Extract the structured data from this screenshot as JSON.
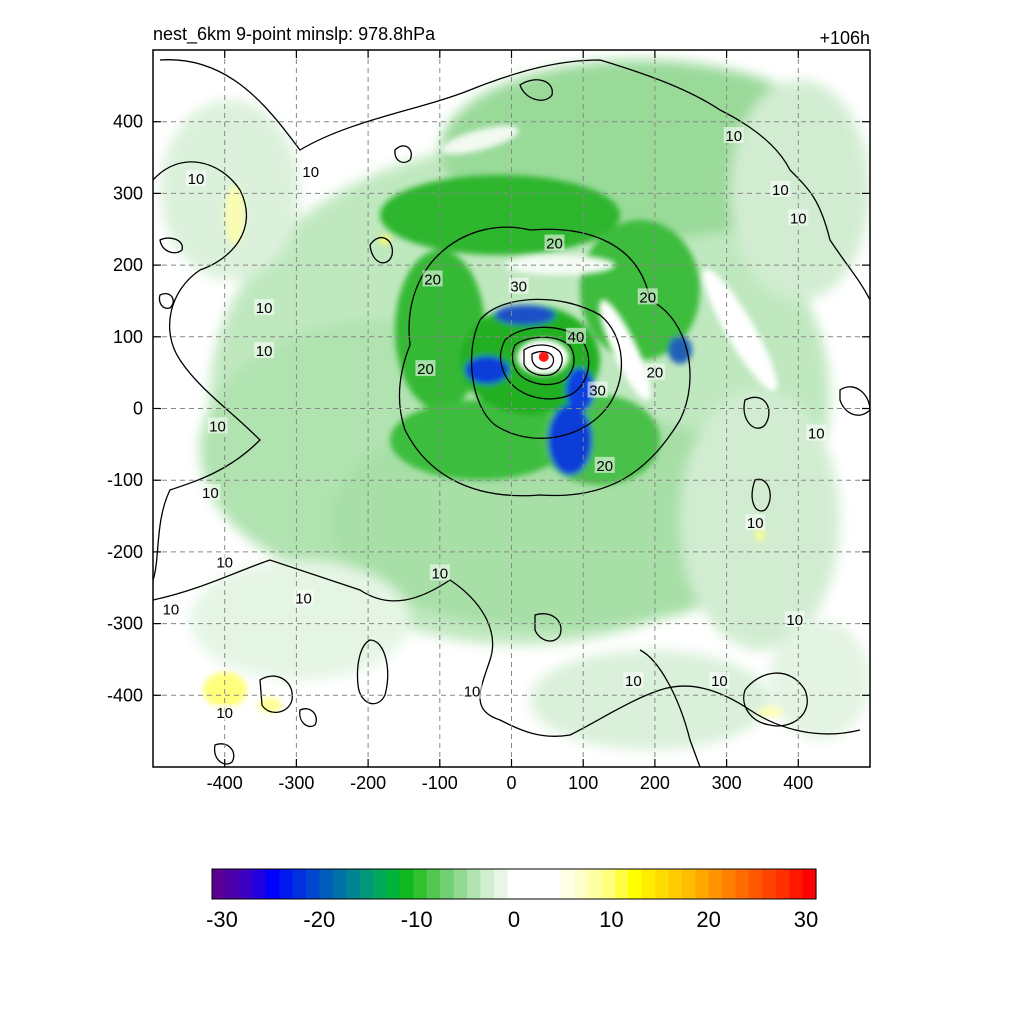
{
  "title_left": "nest_6km  9-point minslp: 978.8hPa",
  "title_right": "+106h",
  "chart_data": {
    "type": "heatmap",
    "description_fields": "shaded field with overlaid black contour lines; red dot marks storm center",
    "xlim": [
      -500,
      500
    ],
    "ylim": [
      -500,
      500
    ],
    "x_ticks": [
      -400,
      -300,
      -200,
      -100,
      0,
      100,
      200,
      300,
      400
    ],
    "y_ticks": [
      400,
      300,
      200,
      100,
      0,
      -100,
      -200,
      -300,
      -400
    ],
    "grid": true,
    "center_marker": {
      "x": 45,
      "y": 72,
      "color": "#ff1a1a"
    },
    "contour_labels": [
      {
        "text": "10",
        "x": 310,
        "y": 380
      },
      {
        "text": "10",
        "x": 375,
        "y": 305
      },
      {
        "text": "10",
        "x": 400,
        "y": 265
      },
      {
        "text": "10",
        "x": -440,
        "y": 320
      },
      {
        "text": "10",
        "x": -280,
        "y": 330
      },
      {
        "text": "10",
        "x": -345,
        "y": 140
      },
      {
        "text": "10",
        "x": -345,
        "y": 80
      },
      {
        "text": "10",
        "x": -410,
        "y": -25
      },
      {
        "text": "10",
        "x": -420,
        "y": -118
      },
      {
        "text": "10",
        "x": -400,
        "y": -215
      },
      {
        "text": "10",
        "x": -475,
        "y": -280
      },
      {
        "text": "10",
        "x": -290,
        "y": -265
      },
      {
        "text": "10",
        "x": -100,
        "y": -230
      },
      {
        "text": "10",
        "x": -55,
        "y": -395
      },
      {
        "text": "10",
        "x": 170,
        "y": -380
      },
      {
        "text": "10",
        "x": 290,
        "y": -380
      },
      {
        "text": "10",
        "x": 340,
        "y": -160
      },
      {
        "text": "10",
        "x": 395,
        "y": -295
      },
      {
        "text": "10",
        "x": 425,
        "y": -35
      },
      {
        "text": "10",
        "x": -400,
        "y": -425
      },
      {
        "text": "20",
        "x": -110,
        "y": 180
      },
      {
        "text": "20",
        "x": 60,
        "y": 230
      },
      {
        "text": "20",
        "x": 190,
        "y": 155
      },
      {
        "text": "20",
        "x": 200,
        "y": 50
      },
      {
        "text": "20",
        "x": -120,
        "y": 55
      },
      {
        "text": "20",
        "x": 130,
        "y": -80
      },
      {
        "text": "30",
        "x": 10,
        "y": 170
      },
      {
        "text": "30",
        "x": 120,
        "y": 25
      },
      {
        "text": "40",
        "x": 90,
        "y": 100
      }
    ]
  },
  "colorbar": {
    "ticks": [
      "-30",
      "-20",
      "-10",
      "0",
      "10",
      "20",
      "30"
    ],
    "colors": [
      "#5a0094",
      "#4d00a8",
      "#3a00c4",
      "#2200e0",
      "#0000ff",
      "#0018f0",
      "#0030e0",
      "#0048d0",
      "#005cbc",
      "#0070a8",
      "#008494",
      "#009878",
      "#00a85c",
      "#00b438",
      "#10b820",
      "#30c030",
      "#52c852",
      "#72d072",
      "#92da92",
      "#b2e4b2",
      "#d0eed0",
      "#e8f6e8",
      "#ffffff",
      "#ffffff",
      "#ffffff",
      "#ffffff",
      "#ffffe4",
      "#ffffc8",
      "#ffffa4",
      "#ffff80",
      "#ffff40",
      "#ffff00",
      "#ffec00",
      "#ffdc00",
      "#ffcc00",
      "#ffbc00",
      "#ffa800",
      "#ff9400",
      "#ff8000",
      "#ff6c00",
      "#ff5800",
      "#ff4400",
      "#ff3000",
      "#ff1800",
      "#ff0000"
    ]
  }
}
